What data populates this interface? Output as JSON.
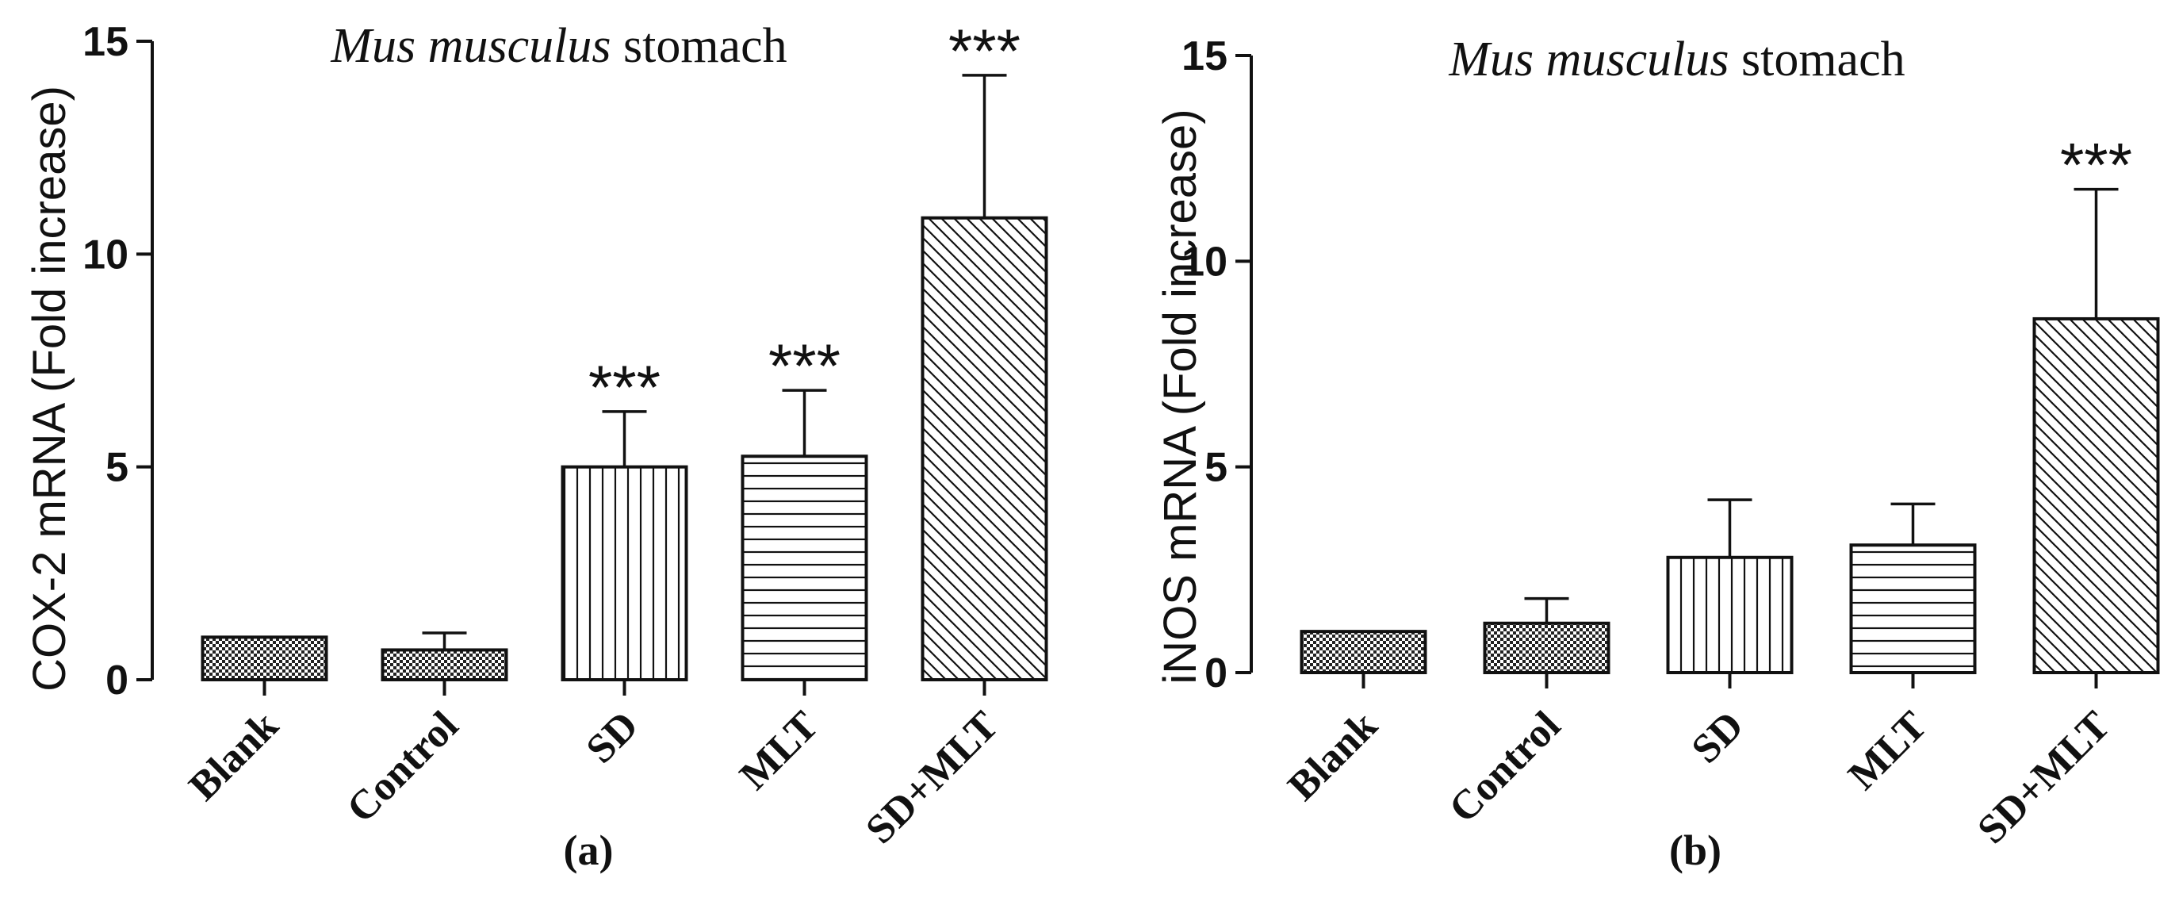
{
  "chart_data": [
    {
      "type": "bar",
      "panel": "(a)",
      "title_italic": "Mus musculus",
      "title_rest": " stomach",
      "ylabel": "COX-2 mRNA (Fold increase)",
      "xlabel": "",
      "ylim": [
        0,
        15
      ],
      "yticks": [
        0,
        5,
        10,
        15
      ],
      "categories": [
        "Blank",
        "Control",
        "SD",
        "MLT",
        "SD+MLT"
      ],
      "values": [
        1.0,
        0.7,
        5.0,
        5.25,
        10.85
      ],
      "errors": [
        0,
        0.4,
        1.3,
        1.55,
        3.35
      ],
      "significance": [
        "",
        "",
        "***",
        "***",
        "***"
      ],
      "patterns": [
        "checker",
        "checker",
        "vertical",
        "horizontal",
        "diagonal"
      ]
    },
    {
      "type": "bar",
      "panel": "(b)",
      "title_italic": "Mus musculus",
      "title_rest": " stomach",
      "ylabel": "iNOS mRNA (Fold increase)",
      "xlabel": "",
      "ylim": [
        0,
        15
      ],
      "yticks": [
        0,
        5,
        10,
        15
      ],
      "categories": [
        "Blank",
        "Control",
        "SD",
        "MLT",
        "SD+MLT"
      ],
      "values": [
        1.0,
        1.2,
        2.8,
        3.1,
        8.6
      ],
      "errors": [
        0,
        0.6,
        1.4,
        1.0,
        3.15
      ],
      "significance": [
        "",
        "",
        "",
        "",
        "***"
      ],
      "patterns": [
        "checker",
        "checker",
        "vertical",
        "horizontal",
        "diagonal"
      ]
    }
  ],
  "colors": {
    "ink": "#111111",
    "fill": "#ffffff"
  }
}
